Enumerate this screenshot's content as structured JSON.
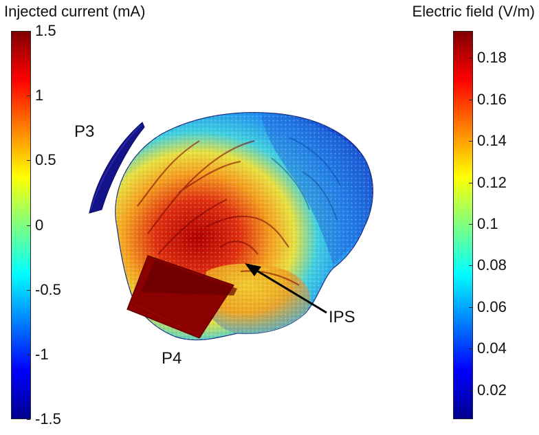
{
  "left_colorbar": {
    "title": "Injected current (mA)",
    "ticks": [
      {
        "label": "1.5",
        "value": 1.5
      },
      {
        "label": "1",
        "value": 1
      },
      {
        "label": "0.5",
        "value": 0.5
      },
      {
        "label": "0",
        "value": 0
      },
      {
        "label": "-0.5",
        "value": -0.5
      },
      {
        "label": "-1",
        "value": -1
      },
      {
        "label": "-1.5",
        "value": -1.5
      }
    ],
    "range": [
      -1.5,
      1.5
    ],
    "colormap": "jet"
  },
  "right_colorbar": {
    "title": "Electric field (V/m)",
    "ticks": [
      {
        "label": "0.18",
        "value": 0.18
      },
      {
        "label": "0.16",
        "value": 0.16
      },
      {
        "label": "0.14",
        "value": 0.14
      },
      {
        "label": "0.12",
        "value": 0.12
      },
      {
        "label": "0.1",
        "value": 0.1
      },
      {
        "label": "0.08",
        "value": 0.08
      },
      {
        "label": "0.06",
        "value": 0.06
      },
      {
        "label": "0.04",
        "value": 0.04
      },
      {
        "label": "0.02",
        "value": 0.02
      }
    ],
    "range": [
      0.006,
      0.193
    ],
    "colormap": "jet"
  },
  "annotations": {
    "electrode_p3": "P3",
    "electrode_p4": "P4",
    "ips": "IPS"
  },
  "colors": {
    "p3_electrode": "#14148a",
    "p4_electrode": "#8b0000",
    "arrow": "#000000"
  }
}
